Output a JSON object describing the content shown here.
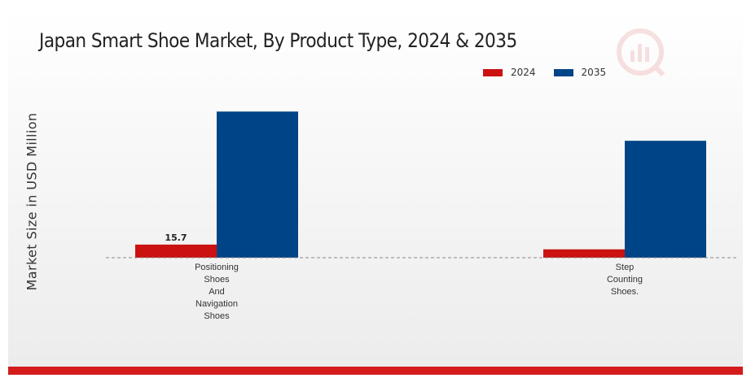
{
  "chart_data": {
    "type": "bar",
    "title": "Japan Smart Shoe Market, By Product Type, 2024 & 2035",
    "ylabel": "Market Size in USD Million",
    "xlabel": "",
    "categories": [
      "Positioning Shoes And Navigation Shoes",
      "Step Counting Shoes."
    ],
    "category_lines": [
      [
        "Positioning",
        "Shoes",
        "And",
        "Navigation",
        "Shoes"
      ],
      [
        "Step",
        "Counting",
        "Shoes."
      ]
    ],
    "series": [
      {
        "name": "2024",
        "color": "#cc1111",
        "values": [
          15.7,
          10.0
        ]
      },
      {
        "name": "2035",
        "color": "#004488",
        "values": [
          175.0,
          140.0
        ]
      }
    ],
    "data_labels": [
      {
        "series": 0,
        "category": 0,
        "text": "15.7"
      }
    ],
    "ylim": [
      0,
      220
    ],
    "grid": false,
    "legend_position": "top-right",
    "baseline_style": "dashed"
  }
}
